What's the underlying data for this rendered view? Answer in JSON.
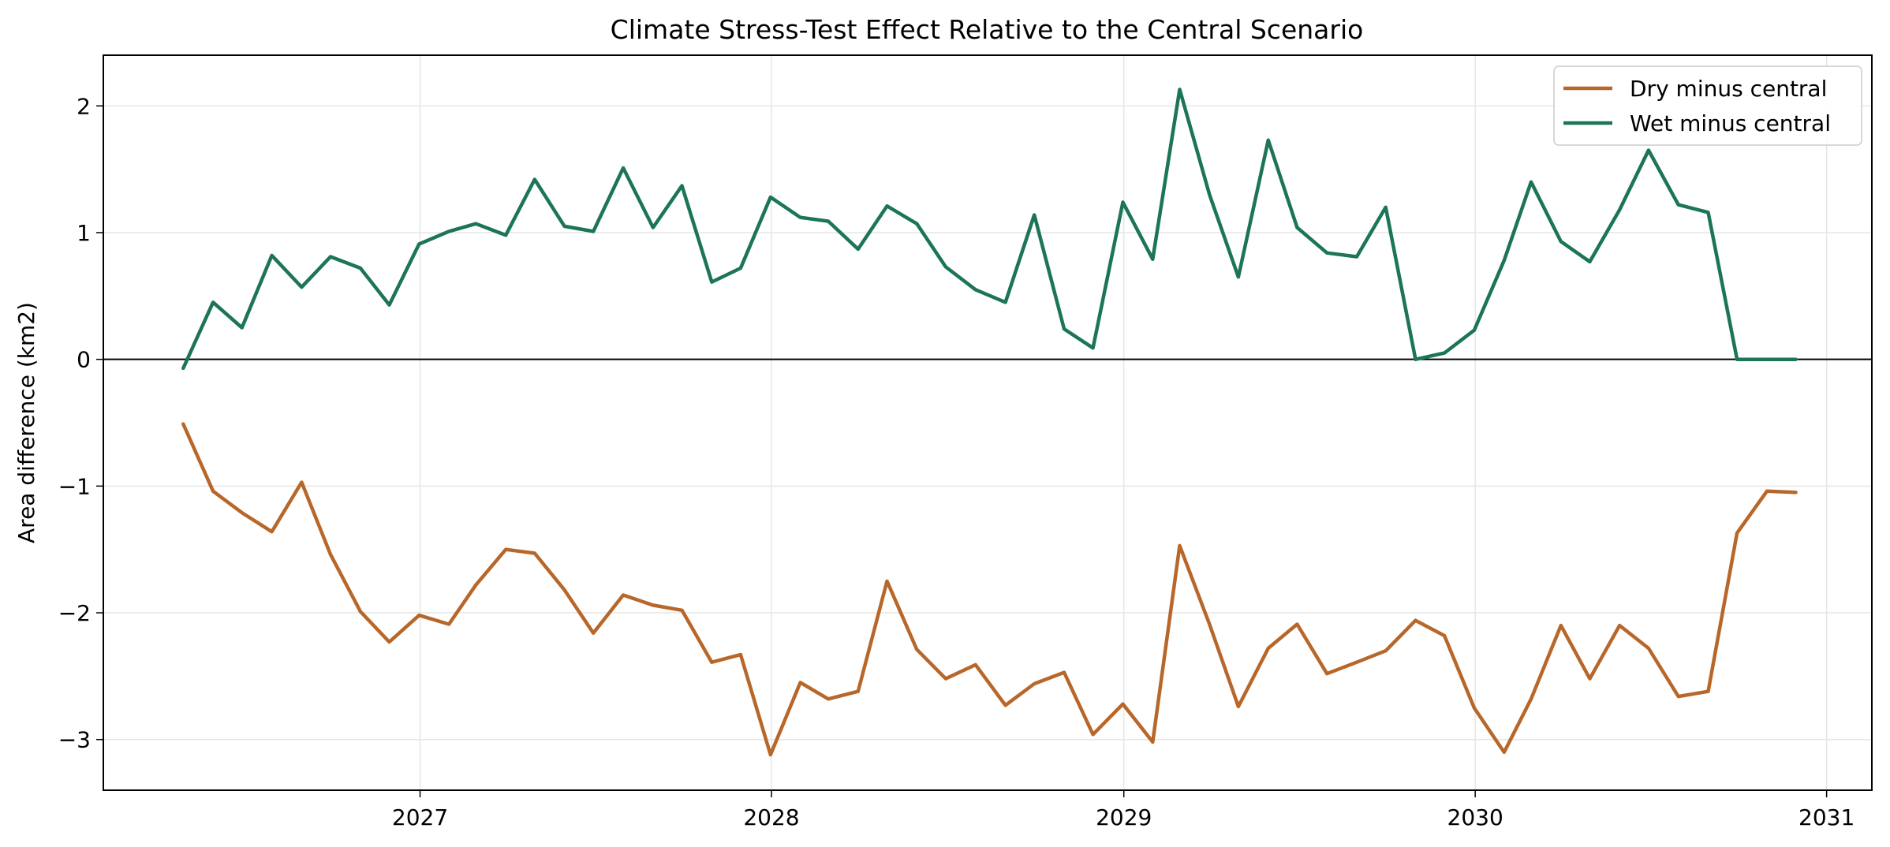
{
  "chart_data": {
    "type": "line",
    "title": "Climate Stress-Test Effect Relative to the Central Scenario",
    "xlabel": "",
    "ylabel": "Area difference (km2)",
    "x_ticks": [
      "2027",
      "2028",
      "2029",
      "2030",
      "2031"
    ],
    "y_ticks": [
      -3,
      -2,
      -1,
      0,
      1,
      2
    ],
    "y_tick_labels": [
      "−3",
      "−2",
      "−1",
      "0",
      "1",
      "2"
    ],
    "xlim": [
      "2026-02-06",
      "2031-02-17"
    ],
    "ylim": [
      -3.4,
      2.4
    ],
    "grid": true,
    "zero_line": true,
    "legend_position": "top-right",
    "x": [
      "2026-04-30",
      "2026-05-31",
      "2026-06-30",
      "2026-07-31",
      "2026-08-31",
      "2026-09-30",
      "2026-10-31",
      "2026-11-30",
      "2026-12-31",
      "2027-01-31",
      "2027-02-28",
      "2027-03-31",
      "2027-04-30",
      "2027-05-31",
      "2027-06-30",
      "2027-07-31",
      "2027-08-31",
      "2027-09-30",
      "2027-10-31",
      "2027-11-30",
      "2027-12-31",
      "2028-01-31",
      "2028-02-29",
      "2028-03-31",
      "2028-04-30",
      "2028-05-31",
      "2028-06-30",
      "2028-07-31",
      "2028-08-31",
      "2028-09-30",
      "2028-10-31",
      "2028-11-30",
      "2028-12-31",
      "2029-01-31",
      "2029-02-28",
      "2029-03-31",
      "2029-04-30",
      "2029-05-31",
      "2029-06-30",
      "2029-07-31",
      "2029-08-31",
      "2029-09-30",
      "2029-10-31",
      "2029-11-30",
      "2029-12-31",
      "2030-01-31",
      "2030-02-28",
      "2030-03-31",
      "2030-04-30",
      "2030-05-31",
      "2030-06-30",
      "2030-07-31",
      "2030-08-31",
      "2030-09-30",
      "2030-10-31",
      "2030-11-30"
    ],
    "series": [
      {
        "name": "Dry minus central",
        "color": "#b8672a",
        "values": [
          -0.51,
          -1.04,
          -1.21,
          -1.36,
          -0.97,
          -1.54,
          -1.99,
          -2.23,
          -2.02,
          -2.09,
          -1.78,
          -1.5,
          -1.53,
          -1.82,
          -2.16,
          -1.86,
          -1.94,
          -1.98,
          -2.39,
          -2.33,
          -3.12,
          -2.55,
          -2.68,
          -2.62,
          -1.75,
          -2.29,
          -2.52,
          -2.41,
          -2.73,
          -2.56,
          -2.47,
          -2.96,
          -2.72,
          -3.02,
          -1.47,
          -2.09,
          -2.74,
          -2.28,
          -2.09,
          -2.48,
          -2.39,
          -2.3,
          -2.06,
          -2.18,
          -2.75,
          -3.1,
          -2.68,
          -2.1,
          -2.52,
          -2.1,
          -2.28,
          -2.66,
          -2.62,
          -1.37,
          -1.04,
          -1.05
        ]
      },
      {
        "name": "Wet minus central",
        "color": "#1c7459",
        "values": [
          -0.07,
          0.45,
          0.25,
          0.82,
          0.57,
          0.81,
          0.72,
          0.43,
          0.91,
          1.01,
          1.07,
          0.98,
          1.42,
          1.05,
          1.01,
          1.51,
          1.04,
          1.37,
          0.61,
          0.72,
          1.28,
          1.12,
          1.09,
          0.87,
          1.21,
          1.07,
          0.73,
          0.55,
          0.45,
          1.14,
          0.24,
          0.09,
          1.24,
          0.79,
          2.13,
          1.3,
          0.65,
          1.73,
          1.04,
          0.84,
          0.81,
          1.2,
          0.0,
          0.05,
          0.23,
          0.78,
          1.4,
          0.93,
          0.77,
          1.18,
          1.65,
          1.22,
          1.16,
          0.0,
          0.0,
          0.0
        ]
      }
    ]
  }
}
